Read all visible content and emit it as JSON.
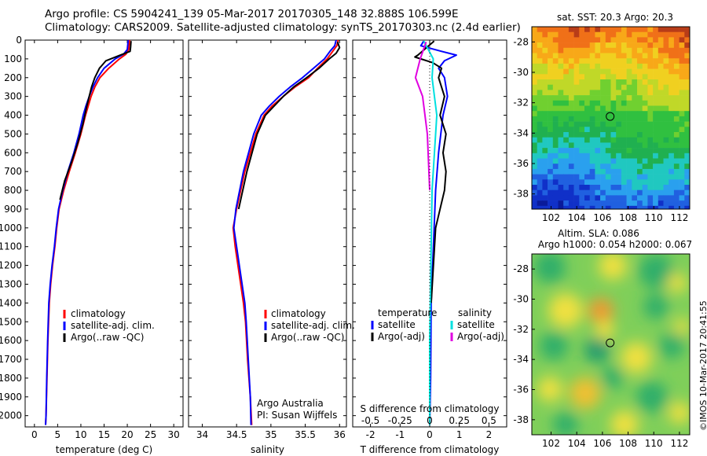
{
  "header": {
    "title_line1": "Argo profile: CS 5904241_139 05-Mar-2017 20170305_148 32.888S 106.599E",
    "title_line2": "Climatology: CARS2009. Satellite-adjusted climatology: synTS_20170303.nc (2.4d earlier)"
  },
  "colors": {
    "climatology": "#ff0000",
    "satellite": "#0000ff",
    "argo": "#000000",
    "salinity_satellite": "#00e0e0",
    "salinity_argo": "#e000e0"
  },
  "chart_data": [
    {
      "type": "line",
      "panel": "temperature",
      "xlabel": "temperature (deg C)",
      "ylabel": "",
      "xlim": [
        -2,
        32
      ],
      "ylim": [
        2060,
        0
      ],
      "xticks": [
        0,
        5,
        10,
        15,
        20,
        25,
        30
      ],
      "yticks": [
        0,
        100,
        200,
        300,
        400,
        500,
        600,
        700,
        800,
        900,
        1000,
        1100,
        1200,
        1300,
        1400,
        1500,
        1600,
        1700,
        1800,
        1900,
        2000
      ],
      "legend": [
        "climatology",
        "satellite-adj. clim.",
        "Argo(..raw -QC)"
      ],
      "legend_position": "bottom-left",
      "series": [
        {
          "name": "climatology",
          "x": [
            20.5,
            20.3,
            19.7,
            18.3,
            16.0,
            14.1,
            13.0,
            12.2,
            11.6,
            11.0,
            10.0,
            8.8,
            7.5,
            6.3,
            5.3,
            4.8,
            4.4,
            3.9,
            3.5,
            3.2,
            2.9,
            2.7,
            2.5,
            2.4
          ],
          "y": [
            0,
            50,
            75,
            100,
            150,
            200,
            250,
            300,
            350,
            400,
            500,
            600,
            700,
            800,
            900,
            1000,
            1100,
            1200,
            1300,
            1400,
            1600,
            1800,
            2000,
            2050
          ]
        },
        {
          "name": "satellite-adj. clim.",
          "x": [
            20.2,
            20.0,
            19.2,
            17.4,
            15.0,
            13.6,
            12.6,
            11.8,
            11.1,
            10.5,
            9.6,
            8.5,
            7.2,
            6.1,
            5.2,
            4.7,
            4.3,
            3.8,
            3.4,
            3.1,
            2.85,
            2.65,
            2.5,
            2.4
          ],
          "y": [
            0,
            50,
            75,
            100,
            150,
            200,
            250,
            300,
            350,
            400,
            500,
            600,
            700,
            800,
            900,
            1000,
            1100,
            1200,
            1300,
            1400,
            1600,
            1800,
            2000,
            2050
          ]
        },
        {
          "name": "Argo(..raw -QC)",
          "x": [
            20.8,
            20.7,
            20.6,
            18.5,
            15.4,
            14.0,
            13.0,
            12.3,
            11.8,
            11.3,
            10.4,
            9.3,
            8.0,
            6.5,
            5.5
          ],
          "y": [
            5,
            40,
            60,
            80,
            110,
            150,
            200,
            250,
            300,
            350,
            450,
            550,
            650,
            750,
            850
          ]
        }
      ]
    },
    {
      "type": "line",
      "panel": "salinity",
      "xlabel": "salinity",
      "ylabel": "",
      "xlim": [
        33.8,
        36.1
      ],
      "ylim": [
        2060,
        0
      ],
      "xticks": [
        34,
        34.5,
        35,
        35.5,
        36
      ],
      "legend": [
        "climatology",
        "satellite-adj. clim.",
        "Argo(..raw -QC)"
      ],
      "legend_position": "bottom-left",
      "annotations": [
        "Argo Australia",
        "PI: Susan Wijffels"
      ],
      "series": [
        {
          "name": "climatology",
          "x": [
            35.98,
            35.96,
            35.9,
            35.82,
            35.68,
            35.55,
            35.35,
            35.18,
            35.02,
            34.9,
            34.78,
            34.62,
            34.5,
            34.45,
            34.48,
            34.52,
            34.56,
            34.6,
            34.63,
            34.66,
            34.7,
            34.72
          ],
          "y": [
            0,
            30,
            60,
            100,
            150,
            200,
            250,
            300,
            350,
            400,
            500,
            700,
            900,
            1000,
            1100,
            1200,
            1300,
            1400,
            1500,
            1700,
            1900,
            2050
          ]
        },
        {
          "name": "satellite-adj. clim.",
          "x": [
            35.95,
            35.93,
            35.86,
            35.78,
            35.62,
            35.46,
            35.28,
            35.12,
            34.98,
            34.86,
            34.75,
            34.6,
            34.49,
            34.46,
            34.5,
            34.54,
            34.58,
            34.62,
            34.64,
            34.67,
            34.7,
            34.71
          ],
          "y": [
            0,
            30,
            60,
            100,
            150,
            200,
            250,
            300,
            350,
            400,
            500,
            700,
            900,
            1000,
            1100,
            1200,
            1300,
            1400,
            1500,
            1700,
            1900,
            2050
          ]
        },
        {
          "name": "Argo(..raw -QC)",
          "x": [
            35.97,
            36.0,
            35.95,
            35.85,
            35.7,
            35.52,
            35.33,
            35.18,
            35.05,
            34.92,
            34.8,
            34.65,
            34.53
          ],
          "y": [
            10,
            40,
            70,
            100,
            150,
            200,
            250,
            300,
            350,
            400,
            500,
            700,
            900
          ]
        }
      ]
    },
    {
      "type": "line",
      "panel": "differences",
      "xlabel": "T difference from climatology",
      "xlabel_top": "S difference from climatology",
      "xlim": [
        -2.6,
        2.6
      ],
      "ylim": [
        2060,
        0
      ],
      "xticks_T": [
        -2,
        -1,
        0,
        1,
        2
      ],
      "xticks_S": [
        -0.5,
        -0.25,
        0,
        0.25,
        0.5
      ],
      "legend_temperature": {
        "title": "temperature",
        "entries": [
          "satellite",
          "Argo(-adj)"
        ]
      },
      "legend_salinity": {
        "title": "salinity",
        "entries": [
          "satellite",
          "Argo(-adj)"
        ]
      },
      "series": [
        {
          "name": "T satellite",
          "x": [
            -0.2,
            -0.3,
            0.4,
            0.9,
            0.5,
            0.3,
            0.5,
            0.6,
            0.45,
            0.3,
            0.2,
            0.15,
            0.05,
            0.03,
            0.0
          ],
          "y": [
            5,
            30,
            60,
            80,
            110,
            150,
            200,
            300,
            400,
            600,
            800,
            1000,
            1400,
            1800,
            2050
          ]
        },
        {
          "name": "T Argo(-adj)",
          "x": [
            0.15,
            -0.4,
            -0.5,
            0.1,
            0.4,
            0.3,
            0.5,
            0.35,
            0.55,
            0.45,
            0.55,
            0.5,
            0.35,
            0.2,
            0.05
          ],
          "y": [
            5,
            80,
            90,
            120,
            150,
            200,
            300,
            400,
            500,
            600,
            700,
            800,
            900,
            1000,
            1400
          ]
        },
        {
          "name": "S satellite",
          "x": [
            -0.05,
            0.03,
            0.02,
            0.06,
            0.04,
            0.02,
            0.01,
            0.0,
            0.0
          ],
          "y": [
            5,
            100,
            200,
            400,
            600,
            800,
            1200,
            1600,
            2050
          ]
        },
        {
          "name": "S Argo(-adj)",
          "x": [
            -0.03,
            -0.08,
            -0.12,
            -0.06,
            -0.02,
            0.0
          ],
          "y": [
            10,
            100,
            200,
            300,
            500,
            800
          ]
        }
      ]
    },
    {
      "type": "heatmap",
      "panel": "sst_map",
      "title": "sat. SST: 20.3  Argo: 20.3",
      "xticks": [
        102,
        104,
        106,
        108,
        110,
        112
      ],
      "yticks": [
        -28,
        -30,
        -32,
        -34,
        -36,
        -38
      ],
      "xlim": [
        100.5,
        112.8
      ],
      "ylim": [
        -39,
        -27
      ],
      "marker": {
        "lon": 106.6,
        "lat": -32.9
      }
    },
    {
      "type": "heatmap",
      "panel": "sla_map",
      "title": "Altim. SLA: 0.086",
      "subtitle": "Argo h1000: 0.054 h2000: 0.067",
      "xticks": [
        102,
        104,
        106,
        108,
        110,
        112
      ],
      "yticks": [
        -28,
        -30,
        -32,
        -34,
        -36,
        -38
      ],
      "xlim": [
        100.5,
        112.8
      ],
      "ylim": [
        -39,
        -27
      ],
      "marker": {
        "lon": 106.6,
        "lat": -32.9
      }
    }
  ],
  "credit": "©IMOS 10-Mar-2017 20:41:55"
}
